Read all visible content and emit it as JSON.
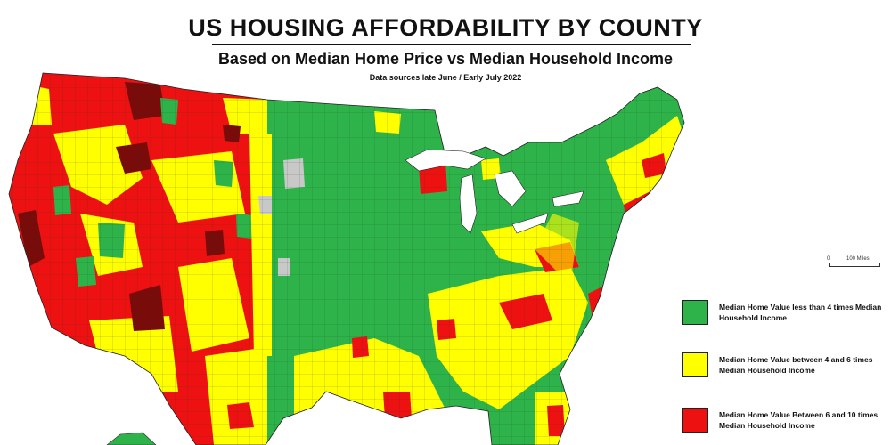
{
  "header": {
    "title": "US HOUSING AFFORDABILITY BY COUNTY",
    "subtitle": "Based on Median Home Price vs Median Household Income",
    "source": "Data sources late June / Early July 2022"
  },
  "scale": {
    "zero": "0",
    "distance": "100 Miles"
  },
  "colors": {
    "green": "#2eb34a",
    "yellow": "#ffff00",
    "red": "#ee1111",
    "dark_red": "#7a0b0b",
    "no_data": "#c8c8c8"
  },
  "legend": [
    {
      "label": "Median Home Value less than 4 times Median Household Income",
      "color": "#2eb34a"
    },
    {
      "label": "Median Home Value between 4 and 6 times Median Household Income",
      "color": "#ffff00"
    },
    {
      "label": "Median Home Value Between 6 and 10 times Median Household Income",
      "color": "#ee1111"
    }
  ]
}
